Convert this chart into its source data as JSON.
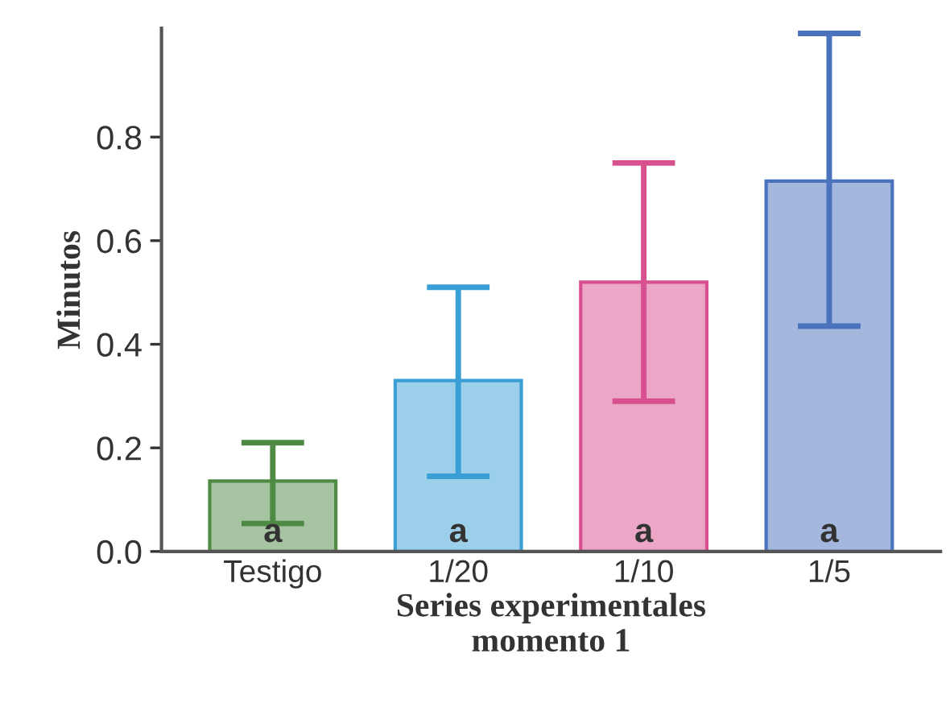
{
  "chart_data": {
    "type": "bar",
    "xlabel": "Series experimentales\nmomento 1",
    "ylabel": "Minutos",
    "categories": [
      "Testigo",
      "1/20",
      "1/10",
      "1/5"
    ],
    "values": [
      0.136,
      0.33,
      0.52,
      0.715
    ],
    "errors": [
      [
        0.054,
        0.21
      ],
      [
        0.145,
        0.51
      ],
      [
        0.29,
        0.75
      ],
      [
        0.435,
        1.0
      ]
    ],
    "colors": [
      "#4f8a45",
      "#3a9fd4",
      "#d9508f",
      "#4a72bd"
    ],
    "ylim": [
      0,
      1.01
    ],
    "yticks": [
      {
        "value": 0,
        "label": "0.0"
      },
      0.2,
      0.4,
      0.6,
      0.8
    ],
    "annotations": [
      "a",
      "a",
      "a",
      "a"
    ],
    "grid": false
  }
}
